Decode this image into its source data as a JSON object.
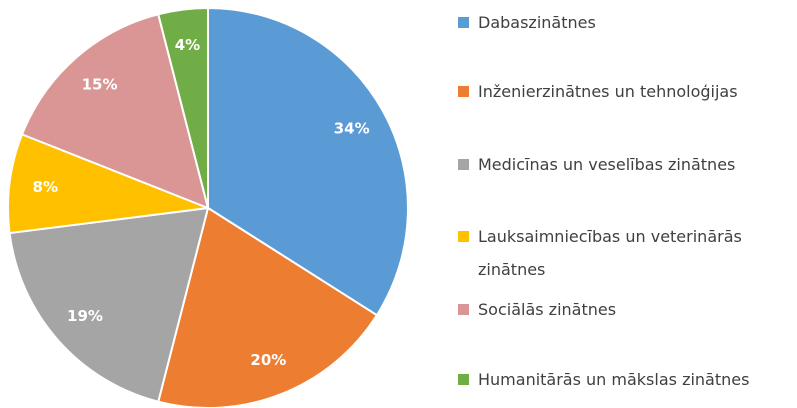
{
  "chart_data": {
    "type": "pie",
    "categories": [
      "Dabaszinātnes",
      "Inženierzinātnes un tehnoloģijas",
      "Medicīnas un veselības zinātnes",
      "Lauksaimniecības un veterinārās zinātnes",
      "Sociālās zinātnes",
      "Humanitārās un mākslas zinātnes"
    ],
    "values": [
      34,
      20,
      19,
      8,
      15,
      4
    ],
    "value_labels": [
      "34%",
      "20%",
      "19%",
      "8%",
      "15%",
      "4%"
    ],
    "colors": [
      "#5b9bd5",
      "#ed7d31",
      "#a5a5a5",
      "#ffc000",
      "#d99694",
      "#70ad47"
    ]
  }
}
